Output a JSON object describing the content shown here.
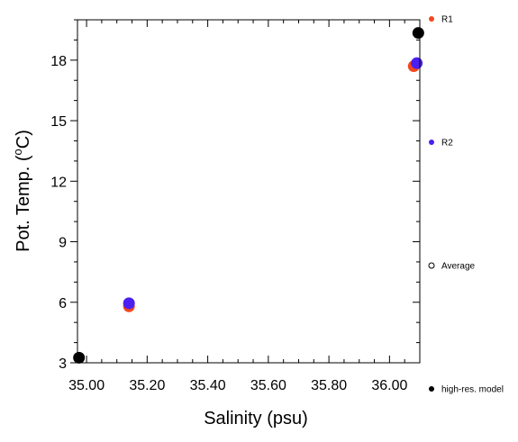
{
  "chart_data": {
    "type": "scatter",
    "title": "",
    "xlabel": "Salinity (psu)",
    "ylabel_text": "Pot. Temp. (",
    "ylabel_degree": "o",
    "ylabel_unit": "C)",
    "xlim": [
      34.97,
      36.1
    ],
    "ylim": [
      3,
      20
    ],
    "xticks": [
      35.0,
      35.2,
      35.4,
      35.6,
      35.8,
      36.0
    ],
    "xtick_labels": [
      "35.00",
      "35.20",
      "35.40",
      "35.60",
      "35.80",
      "36.00"
    ],
    "xminor_step": 0.05,
    "yticks": [
      3,
      6,
      9,
      12,
      15,
      18
    ],
    "ytick_labels": [
      "3",
      "6",
      "9",
      "12",
      "15",
      "18"
    ],
    "yminor_step": 1,
    "grid": false,
    "legend_placement": "right",
    "series": [
      {
        "name": "R1",
        "color": "#f5471f",
        "marker": "filled-circle",
        "points": [
          {
            "x": 35.14,
            "y": 5.8
          },
          {
            "x": 36.08,
            "y": 17.7
          }
        ]
      },
      {
        "name": "R2",
        "color": "#4b1ff2",
        "marker": "filled-circle",
        "points": [
          {
            "x": 35.14,
            "y": 5.95
          },
          {
            "x": 36.09,
            "y": 17.85
          }
        ]
      },
      {
        "name": "Average",
        "color": "#000000",
        "marker": "open-circle",
        "points": []
      },
      {
        "name": "high-res. model",
        "color": "#000000",
        "marker": "filled-circle",
        "points": [
          {
            "x": 34.975,
            "y": 3.25
          },
          {
            "x": 36.095,
            "y": 19.35
          }
        ]
      }
    ]
  }
}
